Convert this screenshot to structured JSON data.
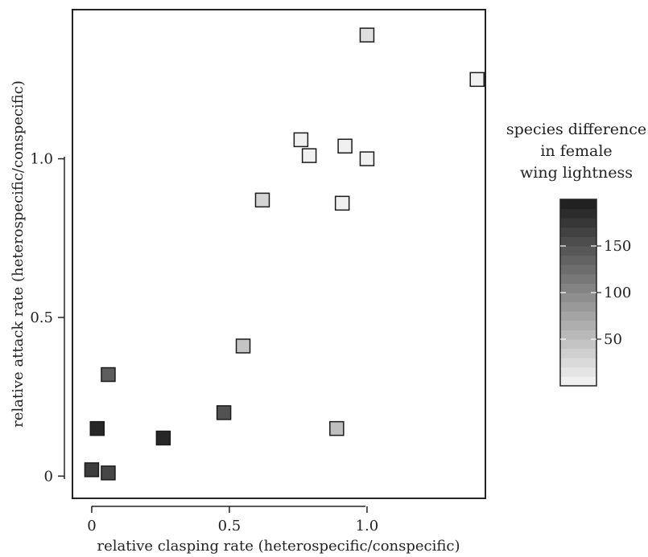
{
  "chart_data": {
    "type": "scatter",
    "xlabel": "relative clasping rate (heterospecific/conspecific)",
    "ylabel": "relative attack rate (heterospecific/conspecific)",
    "xlim": [
      -0.07,
      1.43
    ],
    "ylim": [
      -0.07,
      1.47
    ],
    "x_ticks": [
      {
        "value": 0,
        "label": "0"
      },
      {
        "value": 0.5,
        "label": "0.5"
      },
      {
        "value": 1.0,
        "label": "1.0"
      }
    ],
    "y_ticks": [
      {
        "value": 0,
        "label": "0"
      },
      {
        "value": 0.5,
        "label": "0.5"
      },
      {
        "value": 1.0,
        "label": "1.0"
      }
    ],
    "color_scale": {
      "title_lines": [
        "species difference",
        "in female",
        "wing lightness"
      ],
      "min": 0,
      "max": 200,
      "ticks": [
        {
          "value": 50,
          "label": "50"
        },
        {
          "value": 100,
          "label": "100"
        },
        {
          "value": 150,
          "label": "150"
        }
      ],
      "low_color": "#f5f5f5",
      "high_color": "#1c1c1c"
    },
    "points": [
      {
        "x": 1.0,
        "y": 1.39,
        "lightness": 20
      },
      {
        "x": 1.4,
        "y": 1.25,
        "lightness": 5
      },
      {
        "x": 0.76,
        "y": 1.06,
        "lightness": 5
      },
      {
        "x": 0.79,
        "y": 1.01,
        "lightness": 5
      },
      {
        "x": 0.92,
        "y": 1.04,
        "lightness": 5
      },
      {
        "x": 1.0,
        "y": 1.0,
        "lightness": 5
      },
      {
        "x": 0.62,
        "y": 0.87,
        "lightness": 30
      },
      {
        "x": 0.91,
        "y": 0.86,
        "lightness": 5
      },
      {
        "x": 0.55,
        "y": 0.41,
        "lightness": 45
      },
      {
        "x": 0.06,
        "y": 0.32,
        "lightness": 140
      },
      {
        "x": 0.48,
        "y": 0.2,
        "lightness": 150
      },
      {
        "x": 0.89,
        "y": 0.15,
        "lightness": 50
      },
      {
        "x": 0.02,
        "y": 0.15,
        "lightness": 190
      },
      {
        "x": 0.26,
        "y": 0.12,
        "lightness": 190
      },
      {
        "x": 0.0,
        "y": 0.02,
        "lightness": 170
      },
      {
        "x": 0.06,
        "y": 0.01,
        "lightness": 160
      }
    ]
  }
}
